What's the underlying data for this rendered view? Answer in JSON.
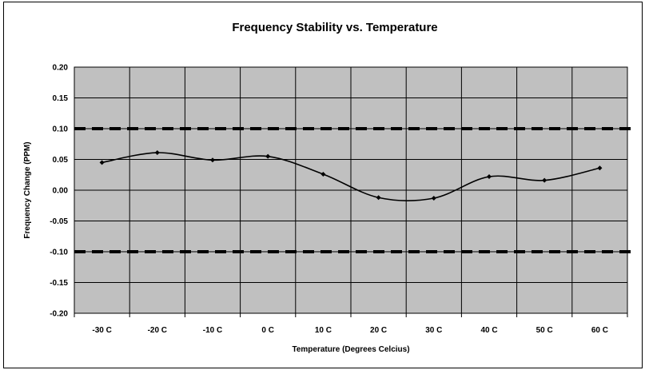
{
  "chart_data": {
    "type": "line",
    "title": "Frequency Stability vs. Temperature",
    "xlabel": "Temperature (Degrees Celcius)",
    "ylabel": "Frequency Change (PPM)",
    "categories": [
      "-30 C",
      "-20 C",
      "-10 C",
      "0 C",
      "10 C",
      "20 C",
      "30 C",
      "40 C",
      "50 C",
      "60 C"
    ],
    "y_ticks": [
      "0.20",
      "0.15",
      "0.10",
      "0.05",
      "0.00",
      "-0.05",
      "-0.10",
      "-0.15",
      "-0.20"
    ],
    "ylim": [
      -0.2,
      0.2
    ],
    "series": [
      {
        "values": [
          0.045,
          0.061,
          0.049,
          0.055,
          0.026,
          -0.012,
          -0.013,
          0.022,
          0.016,
          0.036
        ],
        "color": "#000000",
        "smooth": true,
        "marker": "diamond"
      }
    ],
    "reference_lines": [
      0.1,
      -0.1
    ],
    "reference_line_style": "dashed",
    "grid": true,
    "plot_background": "#c0c0c0",
    "legend": "none"
  }
}
